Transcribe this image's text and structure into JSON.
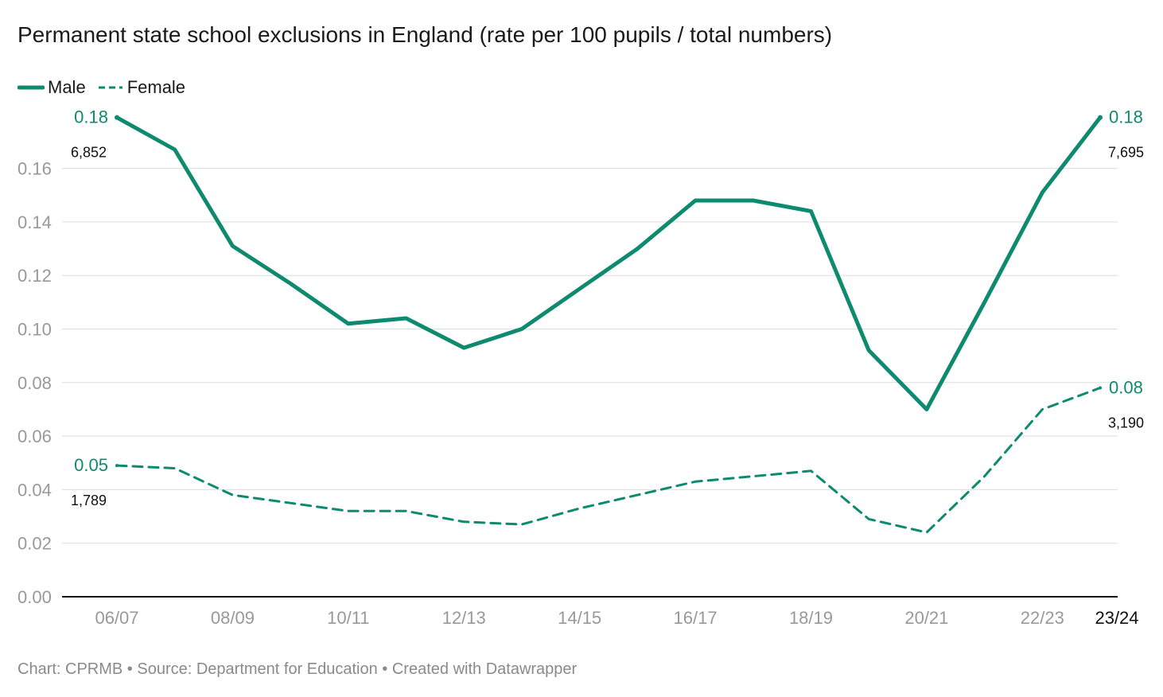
{
  "header": {
    "title": "Permanent state school exclusions in England (rate per 100 pupils / total numbers)"
  },
  "legend": {
    "items": [
      {
        "label": "Male",
        "style": "solid"
      },
      {
        "label": "Female",
        "style": "dashed"
      }
    ]
  },
  "footer": {
    "text": "Chart: CPRMB • Source: Department for Education • Created with Datawrapper"
  },
  "colors": {
    "series": "#0e8a6e",
    "grid": "#dddddd",
    "axis": "#111111",
    "tick_text": "#999999",
    "label_text": "#111111"
  },
  "chart_data": {
    "type": "line",
    "title": "Permanent state school exclusions in England (rate per 100 pupils / total numbers)",
    "xlabel": "",
    "ylabel": "",
    "ylim": [
      0,
      0.18
    ],
    "y_ticks": [
      "0.00",
      "0.02",
      "0.04",
      "0.06",
      "0.08",
      "0.10",
      "0.12",
      "0.14",
      "0.16"
    ],
    "categories": [
      "06/07",
      "07/08",
      "08/09",
      "09/10",
      "10/11",
      "11/12",
      "12/13",
      "13/14",
      "14/15",
      "15/16",
      "16/17",
      "17/18",
      "18/19",
      "19/20",
      "20/21",
      "21/22",
      "22/23",
      "23/24"
    ],
    "x_tick_labels": [
      "06/07",
      "08/09",
      "10/11",
      "12/13",
      "14/15",
      "16/17",
      "18/19",
      "20/21",
      "22/23",
      "23/24"
    ],
    "grid": true,
    "legend_position": "top-left",
    "series": [
      {
        "name": "Male",
        "style": "solid",
        "values": [
          0.179,
          0.167,
          0.131,
          0.117,
          0.102,
          0.104,
          0.093,
          0.1,
          0.115,
          0.13,
          0.148,
          0.148,
          0.144,
          0.092,
          0.07,
          0.11,
          0.151,
          0.179
        ],
        "start_label": "0.18",
        "end_label": "0.18",
        "start_count": "6,852",
        "end_count": "7,695"
      },
      {
        "name": "Female",
        "style": "dashed",
        "values": [
          0.049,
          0.048,
          0.038,
          0.035,
          0.032,
          0.032,
          0.028,
          0.027,
          0.033,
          0.038,
          0.043,
          0.045,
          0.047,
          0.029,
          0.024,
          0.045,
          0.07,
          0.078
        ],
        "start_label": "0.05",
        "end_label": "0.08",
        "start_count": "1,789",
        "end_count": "3,190"
      }
    ]
  }
}
